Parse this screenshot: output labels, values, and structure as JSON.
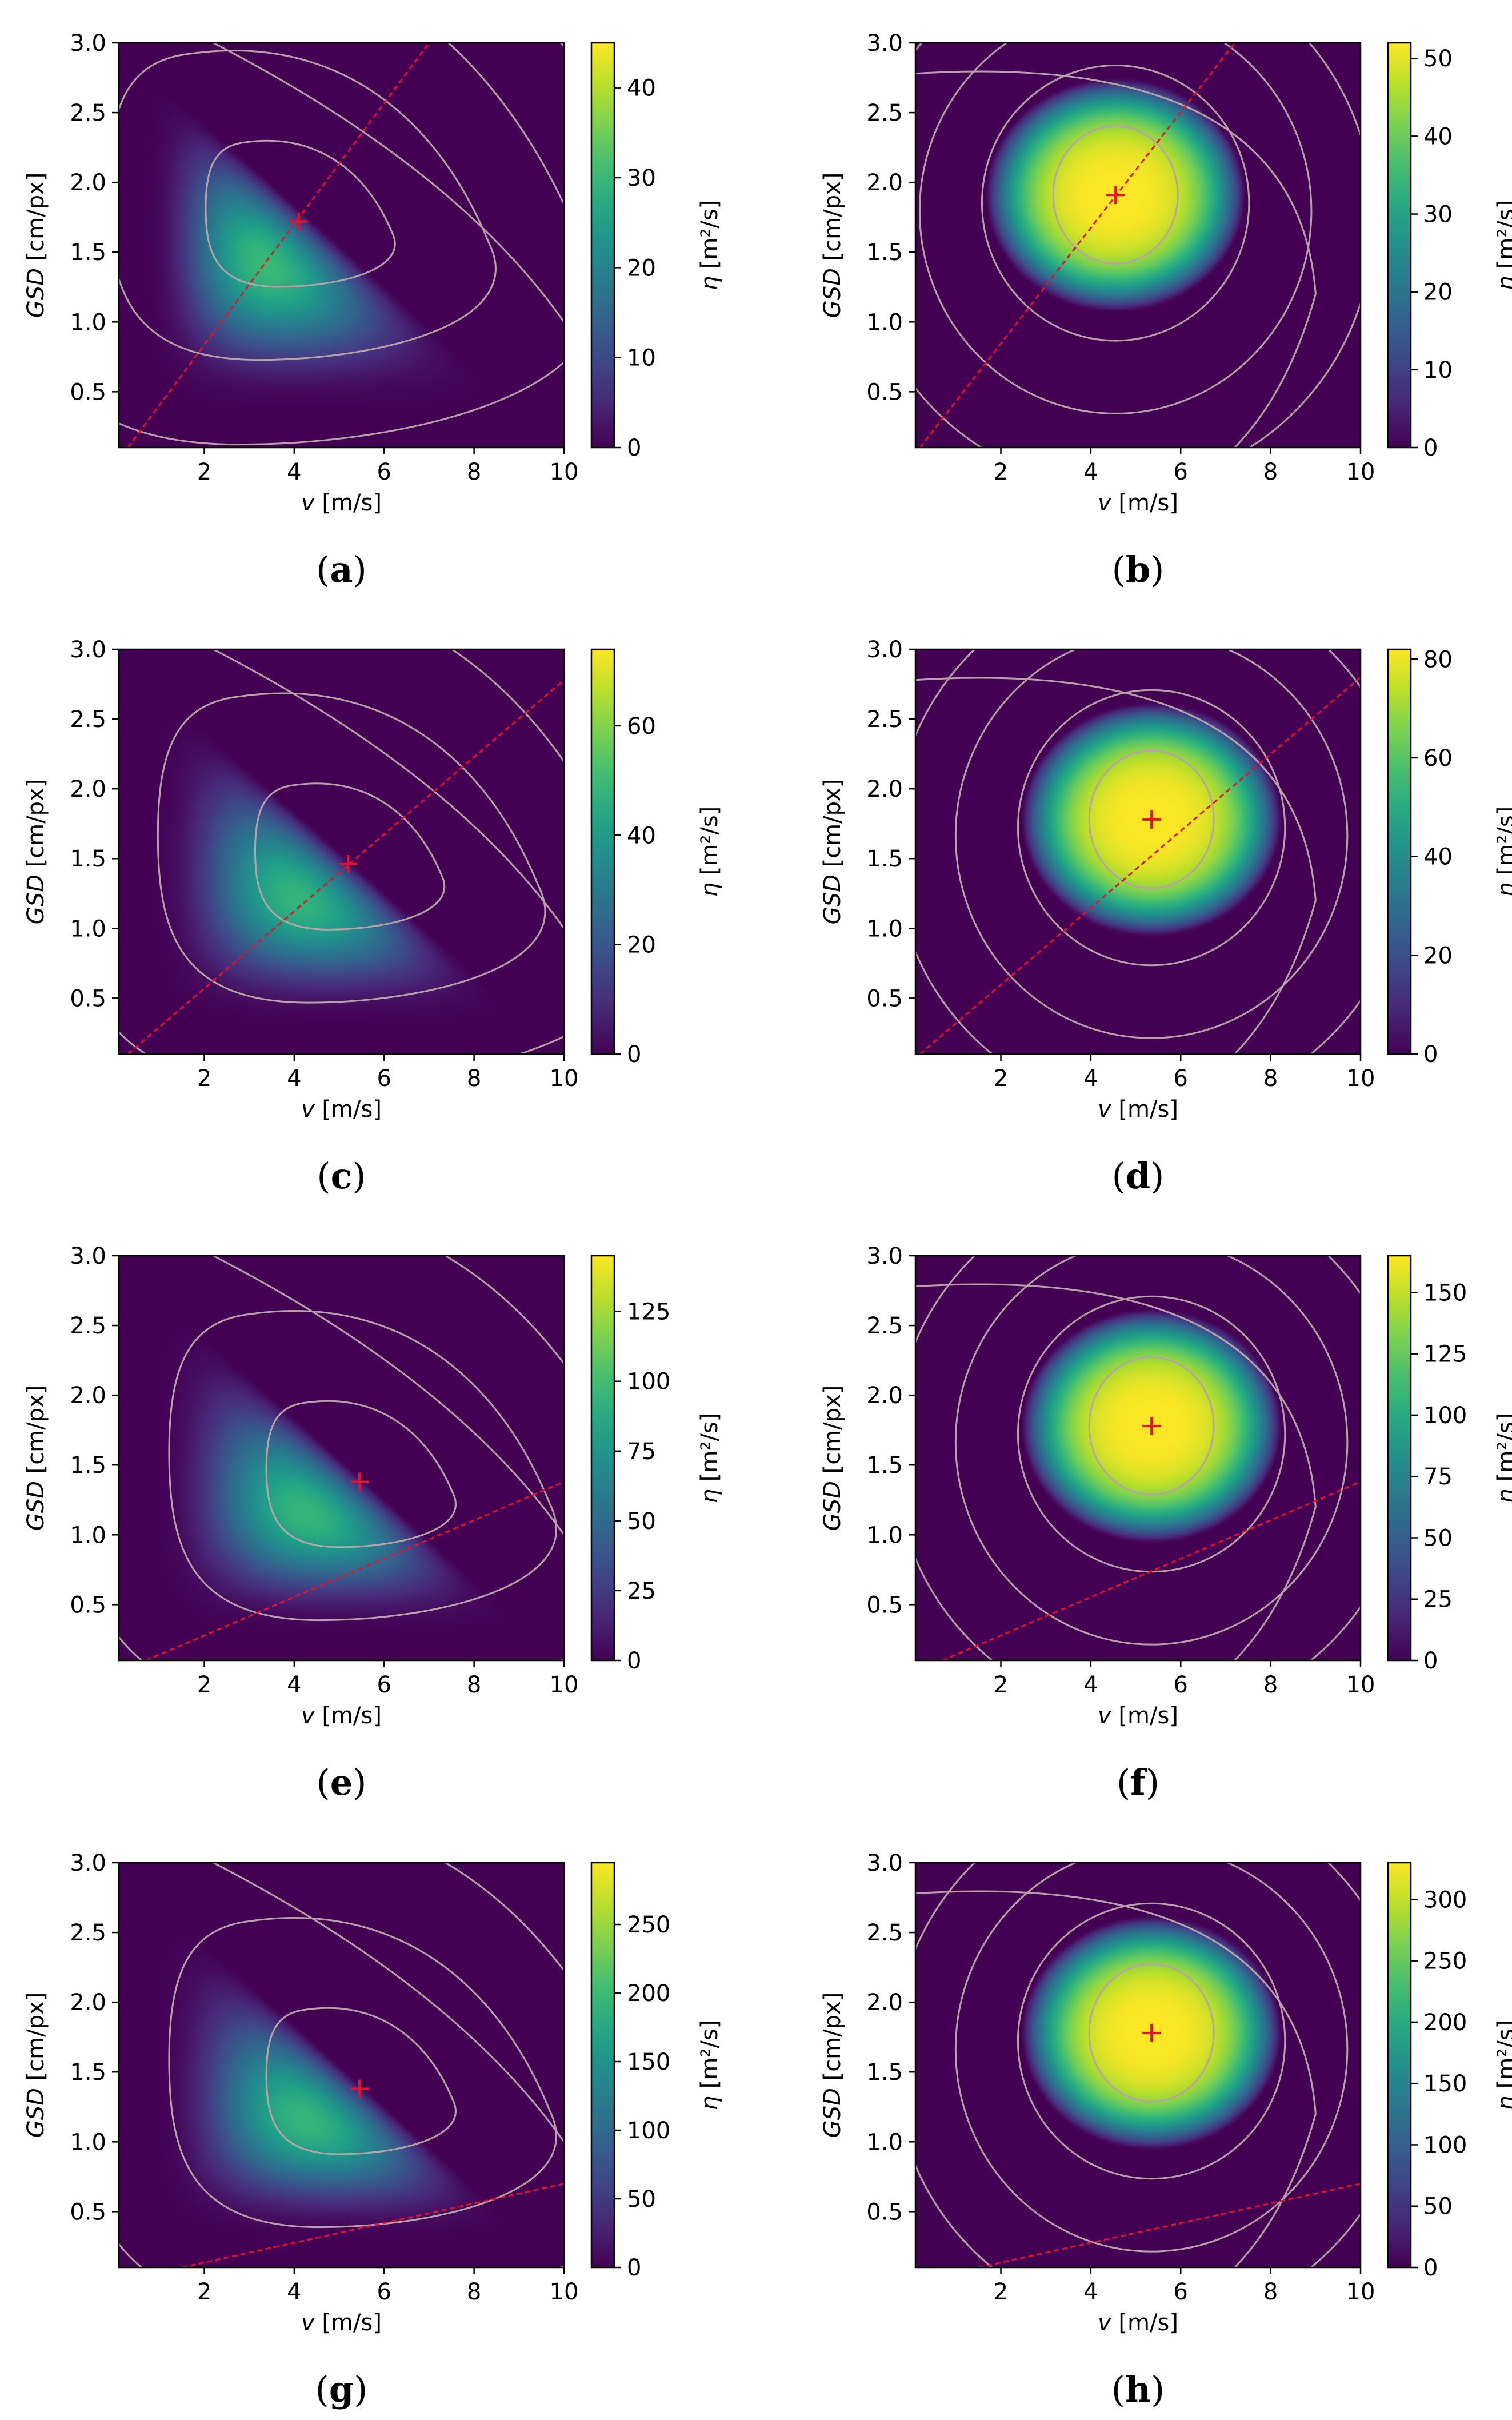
{
  "figure": {
    "x_label_var": "v",
    "x_label_unit": " [m/s]",
    "y_label_var": "GSD",
    "y_label_unit": " [cm/px]",
    "cbar_label_var": "η",
    "cbar_label_unit": " [m²/s]"
  },
  "colors": {
    "marker": "#e8102a",
    "line": "#e8102a",
    "contour": "#b8a2a8"
  },
  "chart_data": [
    {
      "label": "(a)",
      "type": "heatmap",
      "x_ticks": [
        2,
        4,
        6,
        8,
        10
      ],
      "y_ticks": [
        0.5,
        1.0,
        1.5,
        2.0,
        2.5,
        3.0
      ],
      "xlim": [
        0.1,
        10
      ],
      "ylim": [
        0.1,
        3.0
      ],
      "cbar_ticks": [
        0,
        10,
        20,
        30,
        40
      ],
      "cbar_max": 45,
      "optimum": {
        "v": 4.1,
        "gsd": 1.72
      },
      "red_line": [
        {
          "v": 0.3,
          "gsd": 0.1
        },
        {
          "v": 7.0,
          "gsd": 3.0
        }
      ],
      "shape": "triangle"
    },
    {
      "label": "(b)",
      "type": "heatmap",
      "x_ticks": [
        2,
        4,
        6,
        8,
        10
      ],
      "y_ticks": [
        0.5,
        1.0,
        1.5,
        2.0,
        2.5,
        3.0
      ],
      "xlim": [
        0.1,
        10
      ],
      "ylim": [
        0.1,
        3.0
      ],
      "cbar_ticks": [
        0,
        10,
        20,
        30,
        40,
        50
      ],
      "cbar_max": 52,
      "optimum": {
        "v": 4.55,
        "gsd": 1.91
      },
      "red_line": [
        {
          "v": 0.2,
          "gsd": 0.1
        },
        {
          "v": 7.2,
          "gsd": 3.0
        }
      ],
      "shape": "round"
    },
    {
      "label": "(c)",
      "type": "heatmap",
      "x_ticks": [
        2,
        4,
        6,
        8,
        10
      ],
      "y_ticks": [
        0.5,
        1.0,
        1.5,
        2.0,
        2.5,
        3.0
      ],
      "xlim": [
        0.1,
        10
      ],
      "ylim": [
        0.1,
        3.0
      ],
      "cbar_ticks": [
        0,
        20,
        40,
        60
      ],
      "cbar_max": 74,
      "optimum": {
        "v": 5.2,
        "gsd": 1.46
      },
      "red_line": [
        {
          "v": 0.3,
          "gsd": 0.1
        },
        {
          "v": 10.0,
          "gsd": 2.78
        }
      ],
      "shape": "triangle"
    },
    {
      "label": "(d)",
      "type": "heatmap",
      "x_ticks": [
        2,
        4,
        6,
        8,
        10
      ],
      "y_ticks": [
        0.5,
        1.0,
        1.5,
        2.0,
        2.5,
        3.0
      ],
      "xlim": [
        0.1,
        10
      ],
      "ylim": [
        0.1,
        3.0
      ],
      "cbar_ticks": [
        0,
        20,
        40,
        60,
        80
      ],
      "cbar_max": 82,
      "optimum": {
        "v": 5.35,
        "gsd": 1.78
      },
      "red_line": [
        {
          "v": 0.2,
          "gsd": 0.1
        },
        {
          "v": 10.0,
          "gsd": 2.8
        }
      ],
      "shape": "round"
    },
    {
      "label": "(e)",
      "type": "heatmap",
      "x_ticks": [
        2,
        4,
        6,
        8,
        10
      ],
      "y_ticks": [
        0.5,
        1.0,
        1.5,
        2.0,
        2.5,
        3.0
      ],
      "xlim": [
        0.1,
        10
      ],
      "ylim": [
        0.1,
        3.0
      ],
      "cbar_ticks": [
        0,
        25,
        50,
        75,
        100,
        125
      ],
      "cbar_max": 145,
      "optimum": {
        "v": 5.45,
        "gsd": 1.38
      },
      "red_line": [
        {
          "v": 0.7,
          "gsd": 0.1
        },
        {
          "v": 10.0,
          "gsd": 1.38
        }
      ],
      "shape": "triangle"
    },
    {
      "label": "(f)",
      "type": "heatmap",
      "x_ticks": [
        2,
        4,
        6,
        8,
        10
      ],
      "y_ticks": [
        0.5,
        1.0,
        1.5,
        2.0,
        2.5,
        3.0
      ],
      "xlim": [
        0.1,
        10
      ],
      "ylim": [
        0.1,
        3.0
      ],
      "cbar_ticks": [
        0,
        25,
        50,
        75,
        100,
        125,
        150
      ],
      "cbar_max": 165,
      "optimum": {
        "v": 5.35,
        "gsd": 1.78
      },
      "red_line": [
        {
          "v": 0.7,
          "gsd": 0.1
        },
        {
          "v": 10.0,
          "gsd": 1.38
        }
      ],
      "shape": "round"
    },
    {
      "label": "(g)",
      "type": "heatmap",
      "x_ticks": [
        2,
        4,
        6,
        8,
        10
      ],
      "y_ticks": [
        0.5,
        1.0,
        1.5,
        2.0,
        2.5,
        3.0
      ],
      "xlim": [
        0.1,
        10
      ],
      "ylim": [
        0.1,
        3.0
      ],
      "cbar_ticks": [
        0,
        50,
        100,
        150,
        200,
        250
      ],
      "cbar_max": 295,
      "optimum": {
        "v": 5.45,
        "gsd": 1.38
      },
      "red_line": [
        {
          "v": 1.5,
          "gsd": 0.1
        },
        {
          "v": 10.0,
          "gsd": 0.7
        }
      ],
      "shape": "triangle"
    },
    {
      "label": "(h)",
      "type": "heatmap",
      "x_ticks": [
        2,
        4,
        6,
        8,
        10
      ],
      "y_ticks": [
        0.5,
        1.0,
        1.5,
        2.0,
        2.5,
        3.0
      ],
      "xlim": [
        0.1,
        10
      ],
      "ylim": [
        0.1,
        3.0
      ],
      "cbar_ticks": [
        0,
        50,
        100,
        150,
        200,
        250,
        300
      ],
      "cbar_max": 330,
      "optimum": {
        "v": 5.35,
        "gsd": 1.78
      },
      "red_line": [
        {
          "v": 1.5,
          "gsd": 0.1
        },
        {
          "v": 10.0,
          "gsd": 0.7
        }
      ],
      "shape": "round"
    }
  ]
}
